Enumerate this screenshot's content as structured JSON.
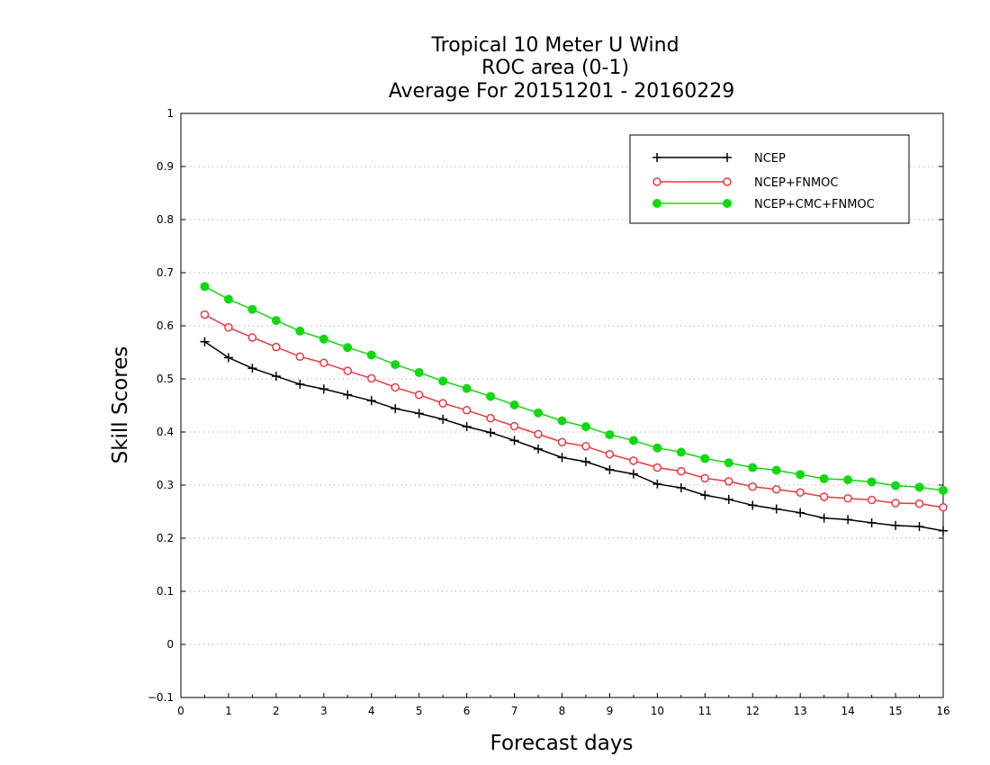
{
  "chart_data": {
    "type": "line",
    "title_lines": [
      "Tropical 10 Meter U Wind",
      "ROC area (0-1)",
      "Average For 20151201 - 20160229"
    ],
    "xlabel": "Forecast days",
    "ylabel": "Skill Scores",
    "xlim": [
      0,
      16
    ],
    "ylim": [
      -0.1,
      1
    ],
    "xticks": [
      "0",
      "1",
      "2",
      "3",
      "4",
      "5",
      "6",
      "7",
      "8",
      "9",
      "10",
      "11",
      "12",
      "13",
      "14",
      "15",
      "16"
    ],
    "yticks": [
      "−0.1",
      "0",
      "0.1",
      "0.2",
      "0.3",
      "0.4",
      "0.5",
      "0.6",
      "0.7",
      "0.8",
      "0.9",
      "1"
    ],
    "grid": true,
    "legend_position": "top-right",
    "x": [
      0.5,
      1,
      1.5,
      2,
      2.5,
      3,
      3.5,
      4,
      4.5,
      5,
      5.5,
      6,
      6.5,
      7,
      7.5,
      8,
      8.5,
      9,
      9.5,
      10,
      10.5,
      11,
      11.5,
      12,
      12.5,
      13,
      13.5,
      14,
      14.5,
      15,
      15.5,
      16
    ],
    "series": [
      {
        "name": "NCEP",
        "color": "#000000",
        "marker": "plus",
        "values": [
          0.57,
          0.54,
          0.52,
          0.505,
          0.49,
          0.481,
          0.47,
          0.459,
          0.444,
          0.435,
          0.424,
          0.41,
          0.399,
          0.384,
          0.368,
          0.352,
          0.344,
          0.329,
          0.321,
          0.302,
          0.295,
          0.281,
          0.273,
          0.262,
          0.255,
          0.248,
          0.238,
          0.235,
          0.229,
          0.224,
          0.222,
          0.214
        ]
      },
      {
        "name": "NCEP+FNMOC",
        "color": "#e8383d",
        "marker": "open-circle",
        "values": [
          0.621,
          0.597,
          0.578,
          0.56,
          0.542,
          0.53,
          0.515,
          0.501,
          0.484,
          0.47,
          0.454,
          0.441,
          0.426,
          0.411,
          0.396,
          0.381,
          0.373,
          0.358,
          0.346,
          0.333,
          0.326,
          0.313,
          0.307,
          0.297,
          0.292,
          0.286,
          0.278,
          0.275,
          0.272,
          0.266,
          0.265,
          0.258
        ]
      },
      {
        "name": "NCEP+CMC+FNMOC",
        "color": "#12d812",
        "marker": "filled-circle",
        "values": [
          0.674,
          0.65,
          0.631,
          0.61,
          0.59,
          0.575,
          0.559,
          0.545,
          0.527,
          0.512,
          0.496,
          0.482,
          0.467,
          0.451,
          0.436,
          0.421,
          0.41,
          0.395,
          0.384,
          0.37,
          0.362,
          0.35,
          0.342,
          0.333,
          0.328,
          0.32,
          0.312,
          0.31,
          0.306,
          0.299,
          0.296,
          0.29
        ]
      }
    ]
  }
}
